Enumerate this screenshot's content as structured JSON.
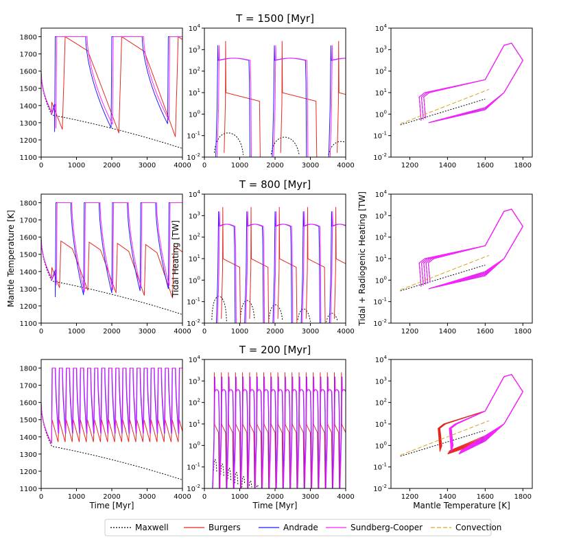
{
  "figure": {
    "row_titles": [
      "T = 1500 [Myr]",
      "T = 800 [Myr]",
      "T = 200 [Myr]"
    ],
    "ylabels": [
      "Mantle Temperature [K]",
      "Tidal Heating [TW]",
      "Tidal + Radiogenic Heating [TW]"
    ],
    "xlabels": [
      "Time [Myr]",
      "Time [Myr]",
      "Mantle Temperature [K]"
    ]
  },
  "legend": [
    {
      "label": "Maxwell",
      "color": "#000000",
      "dash": "2,2"
    },
    {
      "label": "Burgers",
      "color": "#e6261f",
      "dash": ""
    },
    {
      "label": "Andrade",
      "color": "#1a1aff",
      "dash": ""
    },
    {
      "label": "Sundberg-Cooper",
      "color": "#ff22ff",
      "dash": ""
    },
    {
      "label": "Convection",
      "color": "#d9a21b",
      "dash": "6,3"
    }
  ],
  "chart_data": [
    {
      "type": "line",
      "row": 0,
      "col": 0,
      "log": false,
      "xlim": [
        0,
        4000
      ],
      "ylim": [
        1100,
        1850
      ],
      "xticks": [
        0,
        1000,
        2000,
        3000,
        4000
      ],
      "yticks": [
        1100,
        1200,
        1300,
        1400,
        1500,
        1600,
        1700,
        1800
      ],
      "series": [
        {
          "name": "Maxwell",
          "kind": "maxwellT"
        },
        {
          "name": "Burgers",
          "kind": "tempB",
          "first": 600,
          "period": 1600,
          "rise": 430,
          "amp": 1.0,
          "minL": 1265,
          "minR": 1215
        },
        {
          "name": "Andrade",
          "kind": "tempSC",
          "first": 380,
          "period": 1600,
          "offset": -20
        },
        {
          "name": "Sundberg-Cooper",
          "kind": "tempSC",
          "first": 420,
          "period": 1600,
          "offset": 0
        }
      ]
    },
    {
      "type": "line",
      "row": 0,
      "col": 1,
      "log": true,
      "xlim": [
        0,
        4000
      ],
      "ylim": [
        -2,
        4
      ],
      "xticks": [
        0,
        1000,
        2000,
        3000,
        4000
      ],
      "series": [
        {
          "name": "Maxwell",
          "kind": "maxwellH",
          "first": 250,
          "period": 1600,
          "peak": 0.15
        },
        {
          "name": "Burgers",
          "kind": "heatB",
          "first": 600,
          "period": 1600,
          "lastpeak": 3
        },
        {
          "name": "Andrade",
          "kind": "heatSC",
          "first": 380,
          "period": 1600
        },
        {
          "name": "Sundberg-Cooper",
          "kind": "heatSC",
          "first": 420,
          "period": 1600
        }
      ]
    },
    {
      "type": "line",
      "row": 0,
      "col": 2,
      "log": true,
      "xlim": [
        1100,
        1850
      ],
      "ylim": [
        -2,
        4
      ],
      "xticks": [
        1200,
        1400,
        1600,
        1800
      ],
      "series": [
        {
          "name": "Maxwell",
          "kind": "phaseMax"
        },
        {
          "name": "Burgers",
          "kind": "phase",
          "loops": 3,
          "spread": 0.6
        },
        {
          "name": "Andrade",
          "kind": "phase",
          "loops": 3,
          "spread": 0.5
        },
        {
          "name": "Sundberg-Cooper",
          "kind": "phase",
          "loops": 3,
          "spread": 0.7
        },
        {
          "name": "Convection",
          "kind": "conv"
        }
      ]
    },
    {
      "type": "line",
      "row": 1,
      "col": 0,
      "log": false,
      "xlim": [
        0,
        4000
      ],
      "ylim": [
        1100,
        1850
      ],
      "xticks": [
        0,
        1000,
        2000,
        3000,
        4000
      ],
      "yticks": [
        1100,
        1200,
        1300,
        1400,
        1500,
        1600,
        1700,
        1800
      ],
      "series": [
        {
          "name": "Maxwell",
          "kind": "maxwellT"
        },
        {
          "name": "Burgers",
          "kind": "tempB",
          "first": 520,
          "period": 800,
          "rise": 300,
          "amp": 0.55,
          "minL": 1310,
          "minR": 1240
        },
        {
          "name": "Andrade",
          "kind": "tempSC",
          "first": 400,
          "period": 800,
          "offset": -15
        },
        {
          "name": "Sundberg-Cooper",
          "kind": "tempSC",
          "first": 430,
          "period": 800,
          "offset": 0
        }
      ]
    },
    {
      "type": "line",
      "row": 1,
      "col": 1,
      "log": true,
      "xlim": [
        0,
        4000
      ],
      "ylim": [
        -2,
        4
      ],
      "xticks": [
        0,
        1000,
        2000,
        3000,
        4000
      ],
      "series": [
        {
          "name": "Maxwell",
          "kind": "maxwellH",
          "first": 200,
          "period": 800,
          "peak": 0.2
        },
        {
          "name": "Burgers",
          "kind": "heatB",
          "first": 520,
          "period": 800,
          "lastpeak": 10
        },
        {
          "name": "Andrade",
          "kind": "heatSC",
          "first": 400,
          "period": 800
        },
        {
          "name": "Sundberg-Cooper",
          "kind": "heatSC",
          "first": 430,
          "period": 800
        }
      ]
    },
    {
      "type": "line",
      "row": 1,
      "col": 2,
      "log": true,
      "xlim": [
        1100,
        1850
      ],
      "ylim": [
        -2,
        4
      ],
      "xticks": [
        1200,
        1400,
        1600,
        1800
      ],
      "series": [
        {
          "name": "Maxwell",
          "kind": "phaseMax"
        },
        {
          "name": "Burgers",
          "kind": "phase",
          "loops": 5,
          "spread": 0.9
        },
        {
          "name": "Andrade",
          "kind": "phase",
          "loops": 5,
          "spread": 0.6
        },
        {
          "name": "Sundberg-Cooper",
          "kind": "phase",
          "loops": 5,
          "spread": 1.0
        },
        {
          "name": "Convection",
          "kind": "conv"
        }
      ]
    },
    {
      "type": "line",
      "row": 2,
      "col": 0,
      "log": false,
      "xlim": [
        0,
        4000
      ],
      "ylim": [
        1100,
        1850
      ],
      "xticks": [
        0,
        1000,
        2000,
        3000,
        4000
      ],
      "yticks": [
        1100,
        1200,
        1300,
        1400,
        1500,
        1600,
        1700,
        1800
      ],
      "series": [
        {
          "name": "Maxwell",
          "kind": "maxwellT"
        },
        {
          "name": "Burgers",
          "kind": "tempB200",
          "first": 280,
          "period": 200
        },
        {
          "name": "Andrade",
          "kind": "tempSC200",
          "first": 290,
          "period": 200,
          "offset": -5
        },
        {
          "name": "Sundberg-Cooper",
          "kind": "tempSC200",
          "first": 300,
          "period": 200,
          "offset": 0
        }
      ]
    },
    {
      "type": "line",
      "row": 2,
      "col": 1,
      "log": true,
      "xlim": [
        0,
        4000
      ],
      "ylim": [
        -2,
        4
      ],
      "xticks": [
        0,
        1000,
        2000,
        3000,
        4000
      ],
      "series": [
        {
          "name": "Maxwell",
          "kind": "maxwellH",
          "first": 250,
          "period": 200,
          "peak": 0.25
        },
        {
          "name": "Burgers",
          "kind": "heatB200",
          "first": 280,
          "period": 200
        },
        {
          "name": "Andrade",
          "kind": "heatSC",
          "first": 290,
          "period": 200
        },
        {
          "name": "Sundberg-Cooper",
          "kind": "heatSC",
          "first": 300,
          "period": 200
        }
      ]
    },
    {
      "type": "line",
      "row": 2,
      "col": 2,
      "log": true,
      "xlim": [
        1100,
        1850
      ],
      "ylim": [
        -2,
        4
      ],
      "xticks": [
        1200,
        1400,
        1600,
        1800
      ],
      "series": [
        {
          "name": "Maxwell",
          "kind": "phaseMax"
        },
        {
          "name": "Burgers",
          "kind": "phaseB200"
        },
        {
          "name": "Andrade",
          "kind": "phaseSC200"
        },
        {
          "name": "Sundberg-Cooper",
          "kind": "phaseSC200"
        },
        {
          "name": "Convection",
          "kind": "conv"
        }
      ]
    }
  ]
}
